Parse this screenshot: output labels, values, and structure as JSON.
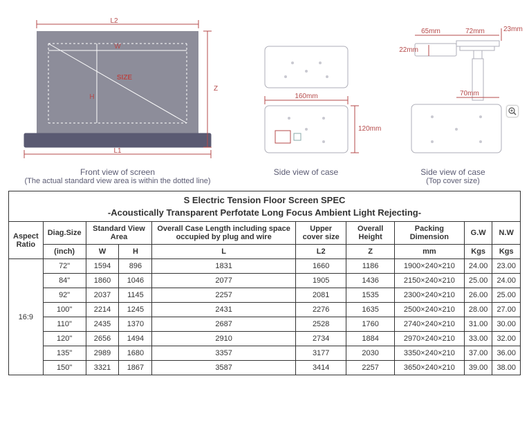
{
  "diagrams": {
    "front": {
      "caption": "Front view of screen",
      "subcaption": "(The actual standard view area is within the dotted line)",
      "labels": {
        "L2": "L2",
        "L1": "L1",
        "W": "W",
        "H": "H",
        "Z": "Z",
        "SIZE": "SIZE"
      },
      "colors": {
        "dim": "#b54a4a",
        "screen": "#8d8d9a",
        "base": "#5a5a72"
      }
    },
    "side1": {
      "caption": "Side view of case",
      "dims": {
        "width": "160mm",
        "height": "120mm"
      }
    },
    "side2": {
      "caption": "Side view of case",
      "subcaption": "(Top cover size)",
      "dims": {
        "a": "65mm",
        "b": "72mm",
        "c": "23mm",
        "d": "22mm",
        "e": "70mm"
      }
    }
  },
  "table": {
    "title_line1": "S Electric Tension Floor Screen SPEC",
    "title_line2": "-Acoustically Transparent Perfotate Long Focus Ambient Light Rejecting-",
    "headers": {
      "aspect": "Aspect Ratio",
      "diag": "Diag.Size",
      "std": "Standard View Area",
      "overallL": "Overall Case Length including space occupied by plug and wire",
      "upper": "Upper cover size",
      "overallH": "Overall Height",
      "packing": "Packing Dimension",
      "gw": "G.W",
      "nw": "N.W"
    },
    "units": {
      "diag": "(inch)",
      "w": "W",
      "h": "H",
      "L": "L",
      "L2": "L2",
      "Z": "Z",
      "mm": "mm",
      "kgs1": "Kgs",
      "kgs2": "Kgs"
    },
    "aspect_ratio": "16:9",
    "rows": [
      {
        "diag": "72\"",
        "w": "1594",
        "h": "896",
        "L": "1831",
        "L2": "1660",
        "Z": "1186",
        "pack": "1900×240×210",
        "gw": "24.00",
        "nw": "23.00"
      },
      {
        "diag": "84\"",
        "w": "1860",
        "h": "1046",
        "L": "2077",
        "L2": "1905",
        "Z": "1436",
        "pack": "2150×240×210",
        "gw": "25.00",
        "nw": "24.00"
      },
      {
        "diag": "92\"",
        "w": "2037",
        "h": "1145",
        "L": "2257",
        "L2": "2081",
        "Z": "1535",
        "pack": "2300×240×210",
        "gw": "26.00",
        "nw": "25.00"
      },
      {
        "diag": "100\"",
        "w": "2214",
        "h": "1245",
        "L": "2431",
        "L2": "2276",
        "Z": "1635",
        "pack": "2500×240×210",
        "gw": "28.00",
        "nw": "27.00"
      },
      {
        "diag": "110\"",
        "w": "2435",
        "h": "1370",
        "L": "2687",
        "L2": "2528",
        "Z": "1760",
        "pack": "2740×240×210",
        "gw": "31.00",
        "nw": "30.00"
      },
      {
        "diag": "120\"",
        "w": "2656",
        "h": "1494",
        "L": "2910",
        "L2": "2734",
        "Z": "1884",
        "pack": "2970×240×210",
        "gw": "33.00",
        "nw": "32.00"
      },
      {
        "diag": "135\"",
        "w": "2989",
        "h": "1680",
        "L": "3357",
        "L2": "3177",
        "Z": "2030",
        "pack": "3350×240×210",
        "gw": "37.00",
        "nw": "36.00"
      },
      {
        "diag": "150\"",
        "w": "3321",
        "h": "1867",
        "L": "3587",
        "L2": "3414",
        "Z": "2257",
        "pack": "3650×240×210",
        "gw": "39.00",
        "nw": "38.00"
      }
    ]
  },
  "zoom_icon": "magnifier-plus-icon"
}
